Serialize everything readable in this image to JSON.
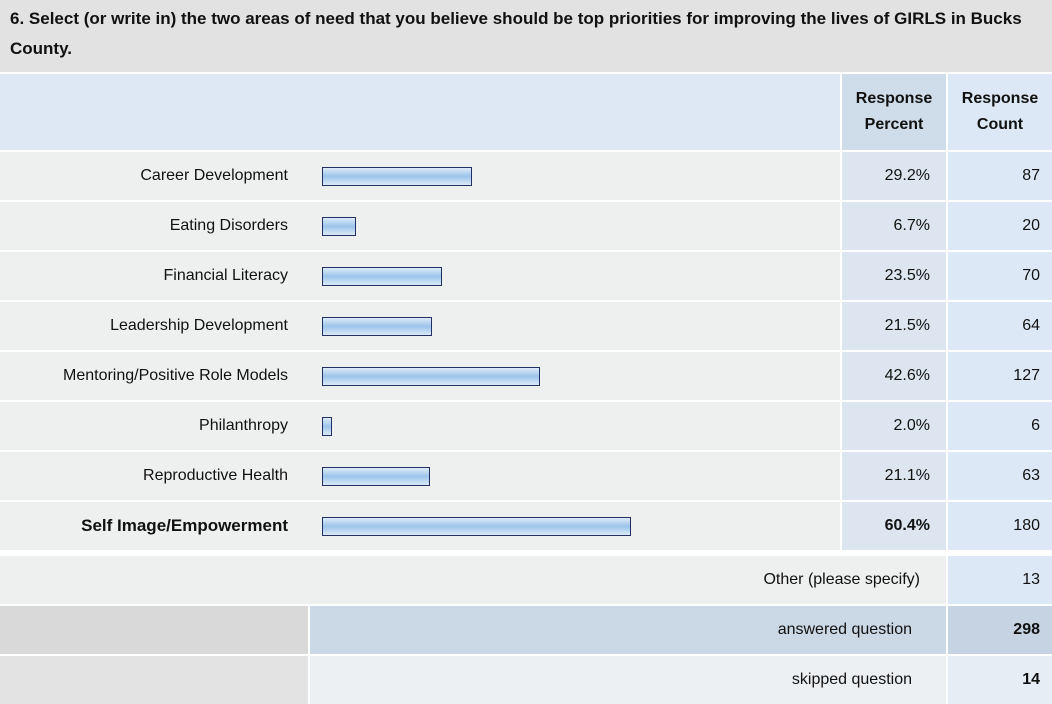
{
  "chart_data": {
    "type": "bar",
    "title": "6. Select (or write in) the two areas of need that you believe should be top priorities for improving the lives of GIRLS in Bucks County.",
    "column_headers": [
      "Response Percent",
      "Response Count"
    ],
    "categories": [
      "Career Development",
      "Eating Disorders",
      "Financial Literacy",
      "Leadership Development",
      "Mentoring/Positive Role Models",
      "Philanthropy",
      "Reproductive Health",
      "Self Image/Empowerment"
    ],
    "values": [
      29.2,
      6.7,
      23.5,
      21.5,
      42.6,
      2.0,
      21.1,
      60.4
    ],
    "value_labels": [
      "29.2%",
      "6.7%",
      "23.5%",
      "21.5%",
      "42.6%",
      "2.0%",
      "21.1%",
      "60.4%"
    ],
    "counts": [
      87,
      20,
      70,
      64,
      127,
      6,
      63,
      180
    ],
    "color": "#9cc4ea",
    "other": {
      "label": "Other (please specify)",
      "count": 13
    },
    "answered": {
      "label": "answered question",
      "count": 298
    },
    "skipped": {
      "label": "skipped question",
      "count": 14
    }
  }
}
